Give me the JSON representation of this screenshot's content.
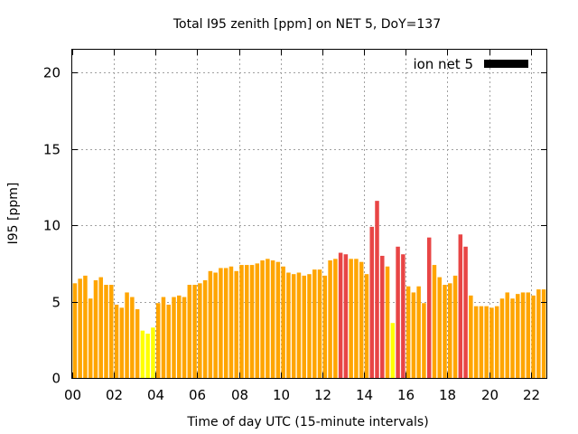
{
  "chart_data": {
    "type": "bar",
    "title": "Total I95 zenith [ppm] on NET 5, DoY=137",
    "xlabel": "Time of day UTC (15-minute intervals)",
    "ylabel": "I95 [ppm]",
    "ylim": [
      0,
      21.5
    ],
    "yticks": [
      0,
      5,
      10,
      15,
      20
    ],
    "xlim": [
      0,
      22.75
    ],
    "xticks": [
      0,
      2,
      4,
      6,
      8,
      10,
      12,
      14,
      16,
      18,
      20,
      22
    ],
    "xtick_labels": [
      "00",
      "02",
      "04",
      "06",
      "08",
      "10",
      "12",
      "14",
      "16",
      "18",
      "20",
      "22"
    ],
    "grid": true,
    "legend": {
      "position": "top-right",
      "entries": [
        {
          "name": "ion net 5",
          "color": "#000000"
        }
      ]
    },
    "interval_hours": 0.25,
    "colors": {
      "normal": "#ffa500",
      "low": "#ffff00",
      "high": "#e84545"
    },
    "series": [
      {
        "name": "ion net 5",
        "values": [
          6.2,
          6.5,
          6.7,
          5.2,
          6.4,
          6.6,
          6.1,
          6.1,
          4.8,
          4.6,
          5.6,
          5.3,
          4.5,
          3.1,
          2.9,
          3.3,
          4.9,
          5.3,
          4.8,
          5.3,
          5.4,
          5.3,
          6.1,
          6.1,
          6.2,
          6.4,
          7.0,
          6.9,
          7.2,
          7.2,
          7.3,
          7.0,
          7.4,
          7.4,
          7.4,
          7.5,
          7.7,
          7.8,
          7.7,
          7.6,
          7.3,
          6.9,
          6.8,
          6.9,
          6.7,
          6.8,
          7.1,
          7.1,
          6.7,
          7.7,
          7.8,
          8.2,
          8.1,
          7.8,
          7.8,
          7.6,
          6.8,
          9.9,
          11.6,
          8.0,
          7.3,
          3.6,
          8.6,
          8.1,
          6.0,
          5.6,
          6.0,
          4.9,
          9.2,
          7.4,
          6.6,
          6.1,
          6.2,
          6.7,
          9.4,
          8.6,
          5.4,
          4.7,
          4.7,
          4.7,
          4.6,
          4.7,
          5.2,
          5.6,
          5.2,
          5.5,
          5.6,
          5.6,
          5.4,
          5.8,
          5.8
        ],
        "levels": [
          "normal",
          "normal",
          "normal",
          "normal",
          "normal",
          "normal",
          "normal",
          "normal",
          "normal",
          "normal",
          "normal",
          "normal",
          "normal",
          "low",
          "low",
          "low",
          "normal",
          "normal",
          "normal",
          "normal",
          "normal",
          "normal",
          "normal",
          "normal",
          "normal",
          "normal",
          "normal",
          "normal",
          "normal",
          "normal",
          "normal",
          "normal",
          "normal",
          "normal",
          "normal",
          "normal",
          "normal",
          "normal",
          "normal",
          "normal",
          "normal",
          "normal",
          "normal",
          "normal",
          "normal",
          "normal",
          "normal",
          "normal",
          "normal",
          "normal",
          "normal",
          "high",
          "high",
          "normal",
          "normal",
          "normal",
          "normal",
          "high",
          "high",
          "high",
          "normal",
          "low",
          "high",
          "high",
          "normal",
          "normal",
          "normal",
          "normal",
          "high",
          "normal",
          "normal",
          "normal",
          "normal",
          "normal",
          "high",
          "high",
          "normal",
          "normal",
          "normal",
          "normal",
          "normal",
          "normal",
          "normal",
          "normal",
          "normal",
          "normal",
          "normal",
          "normal",
          "normal",
          "normal",
          "normal"
        ]
      }
    ]
  }
}
